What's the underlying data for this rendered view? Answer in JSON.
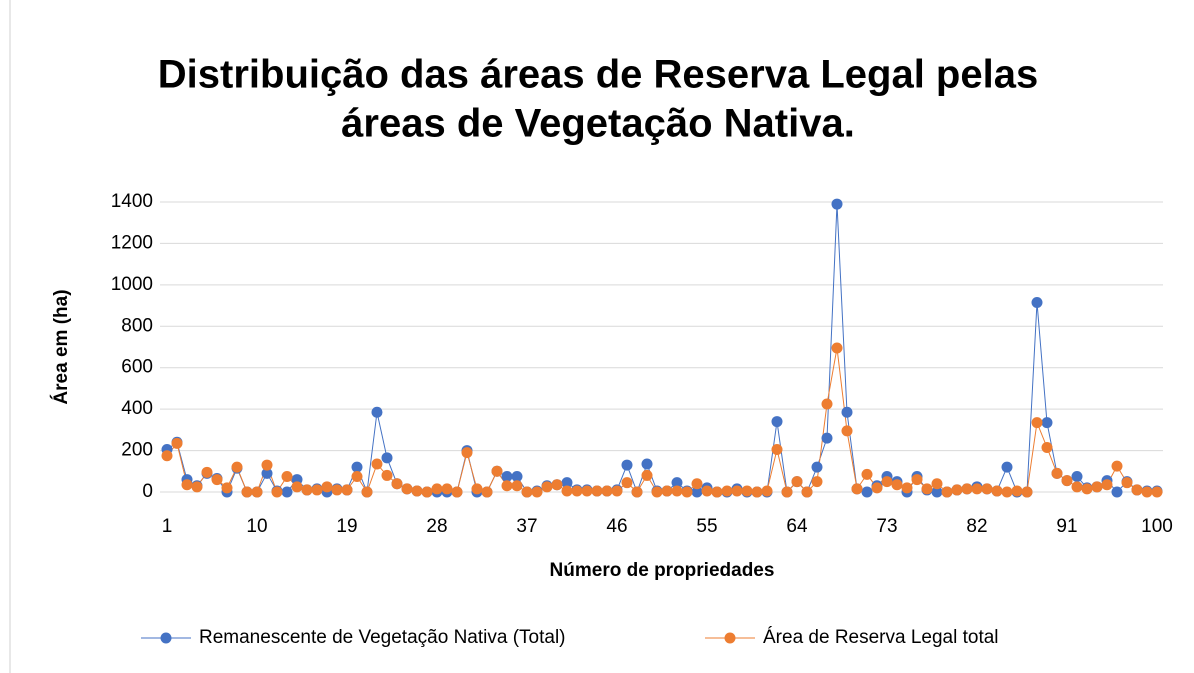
{
  "chart_data": {
    "type": "line",
    "title": [
      "Distribuição das áreas de Reserva Legal pelas",
      "áreas de Vegetação Nativa."
    ],
    "x_label": "Número de propriedades",
    "y_label": "Área em (ha)",
    "x": [
      1,
      2,
      3,
      4,
      5,
      6,
      7,
      8,
      9,
      10,
      11,
      12,
      13,
      14,
      15,
      16,
      17,
      18,
      19,
      20,
      21,
      22,
      23,
      24,
      25,
      26,
      27,
      28,
      29,
      30,
      31,
      32,
      33,
      34,
      35,
      36,
      37,
      38,
      39,
      40,
      41,
      42,
      43,
      44,
      45,
      46,
      47,
      48,
      49,
      50,
      51,
      52,
      53,
      54,
      55,
      56,
      57,
      58,
      59,
      60,
      61,
      62,
      63,
      64,
      65,
      66,
      67,
      68,
      69,
      70,
      71,
      72,
      73,
      74,
      75,
      76,
      77,
      78,
      79,
      80,
      81,
      82,
      83,
      84,
      85,
      86,
      87,
      88,
      89,
      90,
      91,
      92,
      93,
      94,
      95,
      96,
      97,
      98,
      99,
      100
    ],
    "xlim": [
      1,
      100
    ],
    "xticks": [
      1,
      10,
      19,
      28,
      37,
      46,
      55,
      64,
      73,
      82,
      91,
      100
    ],
    "ylim": [
      0,
      1400
    ],
    "yticks": [
      0,
      200,
      400,
      600,
      800,
      1000,
      1200,
      1400
    ],
    "grid": true,
    "legend": "bottom",
    "series": [
      {
        "name": "Remanescente de Vegetação Nativa (Total)",
        "color": "#4472c4",
        "values": [
          205,
          240,
          60,
          30,
          90,
          65,
          0,
          115,
          0,
          0,
          90,
          5,
          0,
          60,
          10,
          15,
          0,
          15,
          10,
          120,
          0,
          385,
          165,
          40,
          15,
          5,
          0,
          0,
          0,
          0,
          200,
          0,
          0,
          100,
          75,
          75,
          0,
          5,
          30,
          35,
          45,
          10,
          10,
          5,
          5,
          10,
          130,
          0,
          135,
          5,
          5,
          45,
          5,
          0,
          20,
          0,
          0,
          15,
          0,
          0,
          0,
          340,
          0,
          50,
          0,
          120,
          260,
          1390,
          385,
          15,
          0,
          30,
          75,
          50,
          0,
          75,
          10,
          0,
          0,
          10,
          15,
          25,
          15,
          5,
          120,
          0,
          0,
          915,
          335,
          90,
          55,
          75,
          20,
          25,
          55,
          0,
          50,
          10,
          5,
          5
        ]
      },
      {
        "name": "Área de Reserva Legal total",
        "color": "#ed7d31",
        "values": [
          175,
          235,
          35,
          25,
          95,
          60,
          20,
          120,
          0,
          0,
          130,
          0,
          75,
          25,
          10,
          10,
          25,
          10,
          10,
          75,
          0,
          135,
          80,
          40,
          15,
          5,
          0,
          15,
          15,
          0,
          190,
          15,
          0,
          100,
          30,
          30,
          0,
          0,
          25,
          35,
          5,
          5,
          5,
          5,
          5,
          5,
          45,
          0,
          80,
          0,
          5,
          5,
          0,
          40,
          5,
          0,
          5,
          5,
          5,
          0,
          5,
          205,
          0,
          50,
          0,
          50,
          425,
          695,
          295,
          15,
          85,
          20,
          50,
          35,
          20,
          60,
          15,
          40,
          0,
          10,
          15,
          15,
          15,
          5,
          0,
          5,
          0,
          335,
          215,
          90,
          55,
          25,
          15,
          25,
          35,
          125,
          45,
          10,
          0,
          0
        ]
      }
    ]
  }
}
